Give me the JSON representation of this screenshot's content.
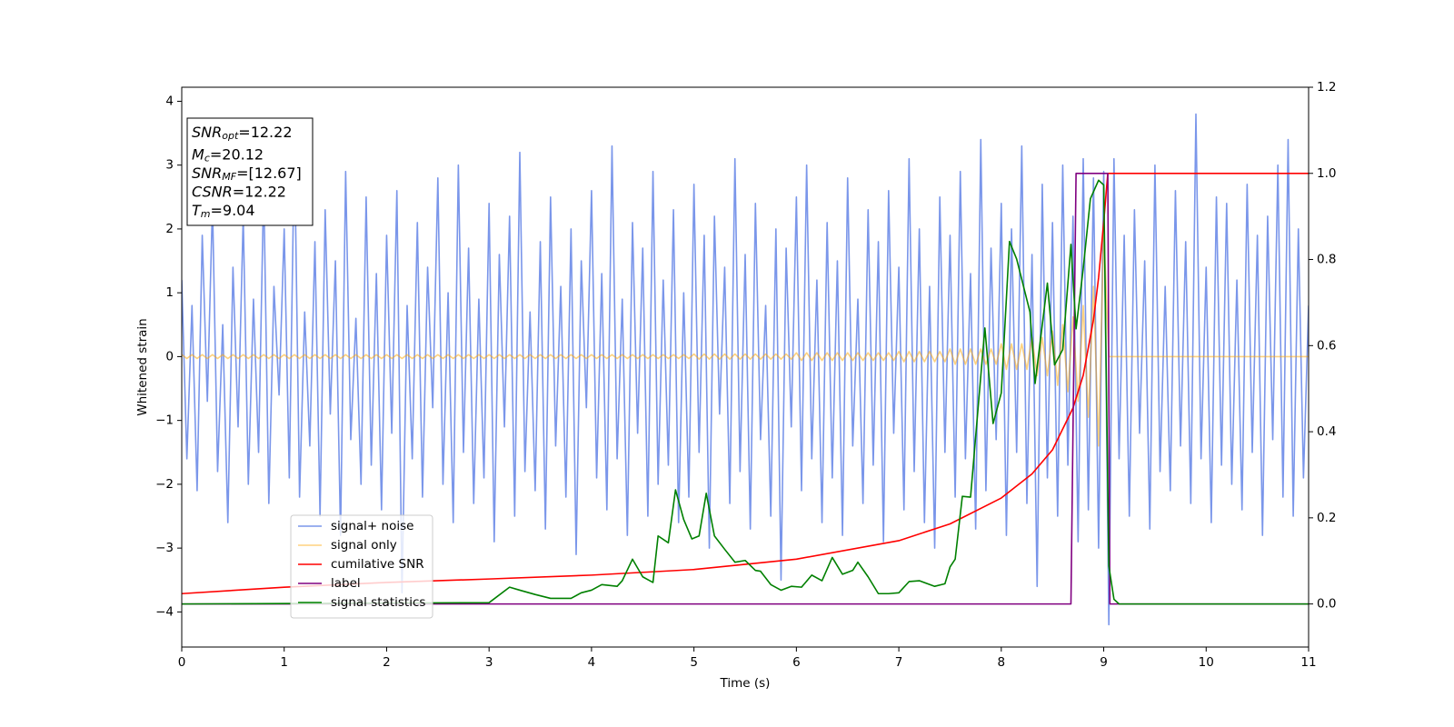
{
  "chart_data": {
    "type": "line",
    "xlabel": "Time (s)",
    "ylabel": "Whitened strain",
    "xlim": [
      0,
      11
    ],
    "xticks": [
      0,
      1,
      2,
      3,
      4,
      5,
      6,
      7,
      8,
      9,
      10,
      11
    ],
    "ylim": [
      -4.55,
      4.22
    ],
    "yticks": [
      {
        "value": -4,
        "label": "−4"
      },
      {
        "value": -3,
        "label": "−3"
      },
      {
        "value": -2,
        "label": "−2"
      },
      {
        "value": -1,
        "label": "−1"
      },
      0,
      1,
      2,
      3,
      4
    ],
    "y2lim": [
      -0.1,
      1.2
    ],
    "y2ticks": [
      {
        "value": 0,
        "label": "0.0"
      },
      {
        "value": 0.2,
        "label": "0.2"
      },
      {
        "value": 0.4,
        "label": "0.4"
      },
      {
        "value": 0.6,
        "label": "0.6"
      },
      {
        "value": 0.8,
        "label": "0.8"
      },
      {
        "value": 1.0,
        "label": "1.0"
      },
      {
        "value": 1.2,
        "label": "1.2"
      }
    ],
    "grid": false,
    "legend_loc": "lower left",
    "annotations": [
      {
        "symbol": "SNR",
        "subscript": "opt",
        "text": "=12.22"
      },
      {
        "symbol": "M",
        "subscript": "c",
        "text": "=20.12"
      },
      {
        "symbol": "SNR",
        "subscript": "MF",
        "text": "=[12.67]"
      },
      {
        "symbol": "CSNR",
        "text": "=12.22"
      },
      {
        "symbol": "T",
        "subscript": "m",
        "text": "=9.04"
      }
    ],
    "x": [
      0,
      0.05,
      0.1,
      0.15,
      0.2,
      0.25,
      0.3,
      0.35,
      0.4,
      0.45,
      0.5,
      0.55,
      0.6,
      0.65,
      0.7,
      0.75,
      0.8,
      0.85,
      0.9,
      0.95,
      1,
      1.05,
      1.1,
      1.15,
      1.2,
      1.25,
      1.3,
      1.35,
      1.4,
      1.45,
      1.5,
      1.55,
      1.6,
      1.65,
      1.7,
      1.75,
      1.8,
      1.85,
      1.9,
      1.95,
      2,
      2.05,
      2.1,
      2.15,
      2.2,
      2.25,
      2.3,
      2.35,
      2.4,
      2.45,
      2.5,
      2.55,
      2.6,
      2.65,
      2.7,
      2.75,
      2.8,
      2.85,
      2.9,
      2.95,
      3,
      3.05,
      3.1,
      3.15,
      3.2,
      3.25,
      3.3,
      3.35,
      3.4,
      3.45,
      3.5,
      3.55,
      3.6,
      3.65,
      3.7,
      3.75,
      3.8,
      3.85,
      3.9,
      3.95,
      4,
      4.05,
      4.1,
      4.15,
      4.2,
      4.25,
      4.3,
      4.35,
      4.4,
      4.45,
      4.5,
      4.55,
      4.6,
      4.65,
      4.7,
      4.75,
      4.8,
      4.85,
      4.9,
      4.95,
      5,
      5.05,
      5.1,
      5.15,
      5.2,
      5.25,
      5.3,
      5.35,
      5.4,
      5.45,
      5.5,
      5.55,
      5.6,
      5.65,
      5.7,
      5.75,
      5.8,
      5.85,
      5.9,
      5.95,
      6,
      6.05,
      6.1,
      6.15,
      6.2,
      6.25,
      6.3,
      6.35,
      6.4,
      6.45,
      6.5,
      6.55,
      6.6,
      6.65,
      6.7,
      6.75,
      6.8,
      6.85,
      6.9,
      6.95,
      7,
      7.05,
      7.1,
      7.15,
      7.2,
      7.25,
      7.3,
      7.35,
      7.4,
      7.45,
      7.5,
      7.55,
      7.6,
      7.65,
      7.7,
      7.75,
      7.8,
      7.85,
      7.9,
      7.95,
      8,
      8.05,
      8.1,
      8.15,
      8.2,
      8.25,
      8.3,
      8.35,
      8.4,
      8.45,
      8.5,
      8.55,
      8.6,
      8.65,
      8.7,
      8.75,
      8.8,
      8.85,
      8.9,
      8.95,
      9,
      9.05,
      9.1,
      9.15,
      9.2,
      9.25,
      9.3,
      9.35,
      9.4,
      9.45,
      9.5,
      9.55,
      9.6,
      9.65,
      9.7,
      9.75,
      9.8,
      9.85,
      9.9,
      9.95,
      10,
      10.05,
      10.1,
      10.15,
      10.2,
      10.25,
      10.3,
      10.35,
      10.4,
      10.45,
      10.5,
      10.55,
      10.6,
      10.65,
      10.7,
      10.75,
      10.8,
      10.85,
      10.9,
      10.95,
      11
    ],
    "series": [
      {
        "name": "signal+ noise",
        "color": "#4169e1",
        "alpha": 0.7,
        "values": [
          1.2,
          -1.6,
          0.8,
          -2.1,
          1.9,
          -0.7,
          2.4,
          -1.8,
          0.5,
          -2.6,
          1.4,
          -1.1,
          2.2,
          -2.0,
          0.9,
          -1.5,
          2.7,
          -2.3,
          1.1,
          -0.6,
          2.0,
          -1.9,
          3.4,
          -2.2,
          0.7,
          -1.4,
          1.8,
          -2.5,
          2.3,
          -0.9,
          1.5,
          -2.8,
          2.9,
          -1.3,
          0.6,
          -2.0,
          2.5,
          -1.7,
          1.3,
          -2.4,
          1.9,
          -1.2,
          2.6,
          -3.7,
          0.8,
          -1.6,
          2.1,
          -2.2,
          1.4,
          -0.8,
          2.8,
          -2.0,
          1.0,
          -2.6,
          3.0,
          -1.5,
          1.7,
          -2.3,
          0.9,
          -1.9,
          2.4,
          -2.9,
          1.6,
          -1.1,
          2.2,
          -2.5,
          3.2,
          -1.8,
          0.7,
          -2.1,
          1.8,
          -2.7,
          2.5,
          -1.4,
          1.1,
          -2.2,
          2.0,
          -3.1,
          1.5,
          -0.8,
          2.6,
          -1.9,
          1.3,
          -2.4,
          3.3,
          -1.6,
          0.9,
          -2.8,
          2.1,
          -1.2,
          1.7,
          -2.5,
          2.9,
          -2.0,
          1.2,
          -1.7,
          2.3,
          -2.6,
          1.0,
          -2.2,
          2.7,
          -1.5,
          1.9,
          -3.0,
          2.2,
          -0.9,
          1.4,
          -2.3,
          3.1,
          -1.8,
          1.6,
          -2.7,
          2.4,
          -1.3,
          0.8,
          -2.5,
          2.0,
          -3.5,
          1.7,
          -1.1,
          2.5,
          -2.1,
          3.0,
          -1.6,
          1.2,
          -2.6,
          2.1,
          -1.9,
          1.5,
          -2.8,
          2.8,
          -1.4,
          0.9,
          -2.3,
          2.3,
          -1.7,
          1.8,
          -2.9,
          2.6,
          -1.2,
          1.4,
          -2.4,
          3.1,
          -1.8,
          2.0,
          -2.6,
          1.1,
          -3.0,
          2.5,
          -1.5,
          1.9,
          -2.2,
          2.9,
          -1.6,
          1.3,
          -2.7,
          3.4,
          -2.1,
          1.7,
          -1.3,
          2.4,
          -2.8,
          2.0,
          -1.5,
          3.3,
          -2.3,
          1.6,
          -3.6,
          2.7,
          -1.9,
          2.1,
          -2.5,
          3.0,
          -1.7,
          2.2,
          -2.9,
          3.1,
          -2.4,
          2.8,
          -3.0,
          2.9,
          -4.2,
          3.1,
          -1.6,
          1.9,
          -2.5,
          2.3,
          -1.2,
          1.5,
          -2.7,
          3.0,
          -1.8,
          1.1,
          -2.1,
          2.6,
          -1.4,
          1.8,
          -2.3,
          3.8,
          -1.6,
          1.4,
          -2.6,
          2.5,
          -1.7,
          2.4,
          -2.0,
          1.2,
          -2.4,
          2.7,
          -1.5,
          1.9,
          -2.8,
          2.2,
          -1.3,
          3.0,
          -2.2,
          3.4,
          -2.5,
          2.0,
          -1.9,
          0.8
        ]
      },
      {
        "name": "signal only",
        "color": "#ffa500",
        "alpha": 0.5,
        "values": [
          0.03,
          -0.03,
          0.03,
          -0.03,
          0.03,
          -0.03,
          0.03,
          -0.03,
          0.03,
          -0.03,
          0.03,
          -0.03,
          0.03,
          -0.03,
          0.03,
          -0.03,
          0.03,
          -0.03,
          0.03,
          -0.03,
          0.03,
          -0.03,
          0.03,
          -0.03,
          0.03,
          -0.03,
          0.03,
          -0.03,
          0.03,
          -0.03,
          0.03,
          -0.03,
          0.03,
          -0.03,
          0.03,
          -0.03,
          0.03,
          -0.03,
          0.03,
          -0.03,
          0.03,
          -0.03,
          0.03,
          -0.03,
          0.03,
          -0.03,
          0.03,
          -0.03,
          0.03,
          -0.03,
          0.03,
          -0.03,
          0.03,
          -0.03,
          0.03,
          -0.03,
          0.03,
          -0.03,
          0.03,
          -0.03,
          0.03,
          -0.03,
          0.03,
          -0.03,
          0.03,
          -0.03,
          0.03,
          -0.03,
          0.03,
          -0.03,
          0.03,
          -0.03,
          0.03,
          -0.03,
          0.03,
          -0.03,
          0.03,
          -0.03,
          0.03,
          -0.03,
          0.03,
          -0.03,
          0.03,
          -0.03,
          0.03,
          -0.03,
          0.03,
          -0.03,
          0.03,
          -0.03,
          0.03,
          -0.03,
          0.03,
          -0.03,
          0.03,
          -0.03,
          0.03,
          -0.03,
          0.03,
          -0.03,
          0.04,
          -0.04,
          0.04,
          -0.04,
          0.04,
          -0.04,
          0.04,
          -0.04,
          0.04,
          -0.04,
          0.04,
          -0.04,
          0.04,
          -0.04,
          0.04,
          -0.04,
          0.04,
          -0.04,
          0.04,
          -0.04,
          0.06,
          -0.06,
          0.06,
          -0.06,
          0.06,
          -0.06,
          0.06,
          -0.06,
          0.06,
          -0.06,
          0.06,
          -0.06,
          0.06,
          -0.06,
          0.06,
          -0.06,
          0.06,
          -0.06,
          0.06,
          -0.06,
          0.08,
          -0.08,
          0.08,
          -0.08,
          0.08,
          -0.08,
          0.08,
          -0.08,
          0.08,
          -0.08,
          0.12,
          -0.12,
          0.12,
          -0.12,
          0.12,
          -0.12,
          0.12,
          -0.12,
          0.12,
          -0.12,
          0.2,
          -0.2,
          0.2,
          -0.2,
          0.2,
          -0.2,
          0.3,
          -0.3,
          0.3,
          -0.3,
          0.4,
          -0.45,
          0.5,
          -0.55,
          0.62,
          -0.7,
          0.8,
          -0.95,
          1.1,
          -1.4,
          2.0,
          0,
          0,
          0,
          0,
          0,
          0,
          0,
          0,
          0,
          0,
          0,
          0,
          0,
          0,
          0,
          0,
          0,
          0,
          0,
          0,
          0,
          0,
          0,
          0,
          0,
          0,
          0,
          0,
          0,
          0,
          0,
          0,
          0,
          0,
          0,
          0,
          0,
          0,
          0,
          0
        ]
      },
      {
        "name": "cumilative SNR",
        "color": "#ff0000",
        "axis": "y2",
        "x": [
          0,
          1,
          2,
          3,
          4,
          5,
          6,
          7,
          7.5,
          8,
          8.3,
          8.5,
          8.7,
          8.8,
          8.9,
          8.95,
          9.0,
          9.03,
          9.04,
          11
        ],
        "values": [
          0.024,
          0.039,
          0.05,
          0.058,
          0.067,
          0.08,
          0.104,
          0.147,
          0.186,
          0.246,
          0.302,
          0.358,
          0.455,
          0.531,
          0.66,
          0.758,
          0.887,
          0.973,
          1.0,
          1.0
        ]
      },
      {
        "name": "label",
        "color": "#800080",
        "axis": "y2",
        "x": [
          0,
          8.68,
          8.73,
          9.04,
          9.06,
          11
        ],
        "values": [
          0,
          0,
          1,
          1,
          0,
          0
        ]
      },
      {
        "name": "signal statistics",
        "color": "#008000",
        "axis": "y2",
        "x": [
          0,
          3.0,
          3.2,
          3.3,
          3.45,
          3.6,
          3.8,
          3.9,
          4.0,
          4.1,
          4.25,
          4.3,
          4.4,
          4.5,
          4.6,
          4.65,
          4.75,
          4.82,
          4.9,
          4.98,
          5.05,
          5.12,
          5.2,
          5.3,
          5.4,
          5.5,
          5.6,
          5.65,
          5.75,
          5.85,
          5.95,
          6.05,
          6.15,
          6.25,
          6.35,
          6.45,
          6.55,
          6.6,
          6.7,
          6.8,
          6.9,
          7.0,
          7.1,
          7.2,
          7.35,
          7.45,
          7.5,
          7.55,
          7.62,
          7.7,
          7.78,
          7.84,
          7.92,
          8.0,
          8.08,
          8.15,
          8.28,
          8.33,
          8.45,
          8.52,
          8.6,
          8.68,
          8.73,
          8.8,
          8.87,
          8.95,
          9.0,
          9.05,
          9.1,
          9.15,
          11
        ],
        "values": [
          0,
          0.003,
          0.039,
          0.032,
          0.022,
          0.013,
          0.013,
          0.026,
          0.032,
          0.045,
          0.041,
          0.054,
          0.104,
          0.063,
          0.05,
          0.158,
          0.142,
          0.265,
          0.196,
          0.151,
          0.158,
          0.257,
          0.158,
          0.127,
          0.097,
          0.101,
          0.078,
          0.076,
          0.045,
          0.032,
          0.041,
          0.039,
          0.067,
          0.054,
          0.108,
          0.069,
          0.078,
          0.097,
          0.063,
          0.024,
          0.024,
          0.026,
          0.052,
          0.054,
          0.041,
          0.047,
          0.086,
          0.104,
          0.25,
          0.248,
          0.473,
          0.641,
          0.419,
          0.49,
          0.842,
          0.801,
          0.678,
          0.512,
          0.745,
          0.555,
          0.591,
          0.835,
          0.639,
          0.779,
          0.941,
          0.984,
          0.973,
          0.088,
          0.011,
          0,
          0
        ]
      }
    ]
  }
}
